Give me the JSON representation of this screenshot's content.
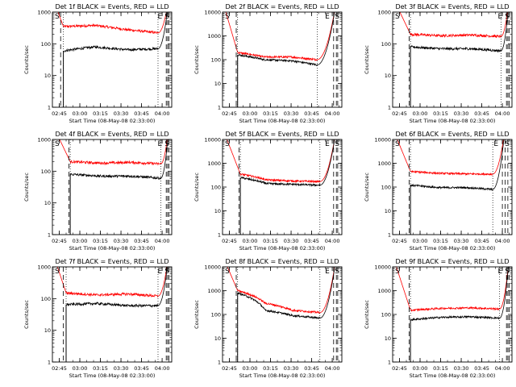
{
  "figure": {
    "xtick_labels": [
      "02:45",
      "03:00",
      "03:15",
      "03:30",
      "03:45",
      "04:00"
    ],
    "ytick_labels": [
      "1",
      "10",
      "100",
      "1000"
    ],
    "ytick_labels_10k": [
      "1",
      "10",
      "100",
      "1000",
      "10000"
    ],
    "xlabel": "Start Time (08-May-08 02:33:00)",
    "ylabel": "Counts/sec",
    "marker_S": "S",
    "marker_E": "E"
  },
  "chart_data": [
    {
      "type": "line",
      "title": "Det 1f BLACK = Events, RED = LLD",
      "ylim": [
        1,
        1000
      ],
      "yscale": "log",
      "xlim": [
        "02:40",
        "04:07"
      ],
      "series": [
        {
          "color": "#000000",
          "kind": "events",
          "values": [
            60,
            80,
            65,
            70
          ]
        },
        {
          "color": "#ff0000",
          "kind": "lld",
          "values": [
            350,
            380,
            280,
            220
          ]
        }
      ],
      "markers": {
        "solid": [
          "02:48",
          "03:57"
        ],
        "dashed": [
          "02:46",
          "04:03",
          "04:04",
          "04:05"
        ]
      }
    },
    {
      "type": "line",
      "title": "Det 2f BLACK = Events, RED = LLD",
      "ylim": [
        1,
        10000
      ],
      "yscale": "log",
      "xlim": [
        "02:40",
        "04:07"
      ],
      "series": [
        {
          "color": "#000000",
          "kind": "events",
          "values": [
            160,
            100,
            90,
            60
          ]
        },
        {
          "color": "#ff0000",
          "kind": "lld",
          "values": [
            200,
            130,
            130,
            100
          ]
        }
      ],
      "markers": {
        "solid": [
          "02:51",
          "03:49"
        ],
        "dashed": [
          "02:50",
          "04:01",
          "04:03",
          "04:04"
        ]
      }
    },
    {
      "type": "line",
      "title": "Det 3f BLACK = Events, RED = LLD",
      "ylim": [
        1,
        1000
      ],
      "yscale": "log",
      "xlim": [
        "02:40",
        "04:07"
      ],
      "series": [
        {
          "color": "#000000",
          "kind": "events",
          "values": [
            80,
            70,
            70,
            60
          ]
        },
        {
          "color": "#ff0000",
          "kind": "lld",
          "values": [
            200,
            180,
            190,
            170
          ]
        }
      ],
      "markers": {
        "solid": [
          "02:53",
          "03:59"
        ],
        "dashed": [
          "02:52",
          "04:03",
          "04:04",
          "04:05"
        ]
      }
    },
    {
      "type": "line",
      "title": "Det 4f BLACK = Events, RED = LLD",
      "ylim": [
        1,
        1000
      ],
      "yscale": "log",
      "xlim": [
        "02:40",
        "04:07"
      ],
      "series": [
        {
          "color": "#000000",
          "kind": "events",
          "values": [
            80,
            70,
            70,
            60
          ]
        },
        {
          "color": "#ff0000",
          "kind": "lld",
          "values": [
            200,
            180,
            190,
            170
          ]
        }
      ],
      "markers": {
        "solid": [
          "02:53",
          "03:59"
        ],
        "dashed": [
          "02:52",
          "04:03",
          "04:04",
          "04:05"
        ]
      }
    },
    {
      "type": "line",
      "title": "Det 5f BLACK = Events, RED = LLD",
      "ylim": [
        1,
        10000
      ],
      "yscale": "log",
      "xlim": [
        "02:40",
        "04:07"
      ],
      "series": [
        {
          "color": "#000000",
          "kind": "events",
          "values": [
            250,
            140,
            130,
            120
          ]
        },
        {
          "color": "#ff0000",
          "kind": "lld",
          "values": [
            350,
            200,
            180,
            170
          ]
        }
      ],
      "markers": {
        "solid": [
          "02:53",
          "03:51"
        ],
        "dashed": [
          "02:52",
          "04:01",
          "04:03",
          "04:04"
        ]
      }
    },
    {
      "type": "line",
      "title": "Det 6f BLACK = Events, RED = LLD",
      "ylim": [
        1,
        10000
      ],
      "yscale": "log",
      "xlim": [
        "02:40",
        "04:07"
      ],
      "series": [
        {
          "color": "#000000",
          "kind": "events",
          "values": [
            120,
            95,
            95,
            80
          ]
        },
        {
          "color": "#ff0000",
          "kind": "lld",
          "values": [
            450,
            380,
            360,
            350
          ]
        }
      ],
      "markers": {
        "solid": [
          "02:53",
          "03:53"
        ],
        "dashed": [
          "02:52",
          "04:00",
          "04:02",
          "04:04"
        ]
      }
    },
    {
      "type": "line",
      "title": "Det 7f BLACK = Events, RED = LLD",
      "ylim": [
        1,
        1000
      ],
      "yscale": "log",
      "xlim": [
        "02:40",
        "04:07"
      ],
      "series": [
        {
          "color": "#000000",
          "kind": "events",
          "values": [
            65,
            70,
            60,
            60
          ]
        },
        {
          "color": "#ff0000",
          "kind": "lld",
          "values": [
            150,
            130,
            140,
            120
          ]
        }
      ],
      "markers": {
        "solid": [
          "02:50",
          "03:57"
        ],
        "dashed": [
          "02:48",
          "04:03",
          "04:04",
          "04:05"
        ]
      }
    },
    {
      "type": "line",
      "title": "Det 8f BLACK = Events, RED = LLD",
      "ylim": [
        1,
        10000
      ],
      "yscale": "log",
      "xlim": [
        "02:40",
        "04:07"
      ],
      "series": [
        {
          "color": "#000000",
          "kind": "events",
          "values": [
            800,
            150,
            90,
            70
          ]
        },
        {
          "color": "#ff0000",
          "kind": "lld",
          "values": [
            1000,
            300,
            150,
            120
          ]
        }
      ],
      "markers": {
        "solid": [
          "02:51",
          "03:51"
        ],
        "dashed": [
          "02:50",
          "04:01",
          "04:03",
          "04:04"
        ]
      }
    },
    {
      "type": "line",
      "title": "Det 9f BLACK = Events, RED = LLD",
      "ylim": [
        1,
        10000
      ],
      "yscale": "log",
      "xlim": [
        "02:40",
        "04:07"
      ],
      "series": [
        {
          "color": "#000000",
          "kind": "events",
          "values": [
            60,
            75,
            80,
            70
          ]
        },
        {
          "color": "#ff0000",
          "kind": "lld",
          "values": [
            150,
            180,
            190,
            170
          ]
        }
      ],
      "markers": {
        "solid": [
          "02:53",
          "03:58"
        ],
        "dashed": [
          "02:52",
          "04:03",
          "04:04",
          "04:05"
        ]
      }
    }
  ]
}
